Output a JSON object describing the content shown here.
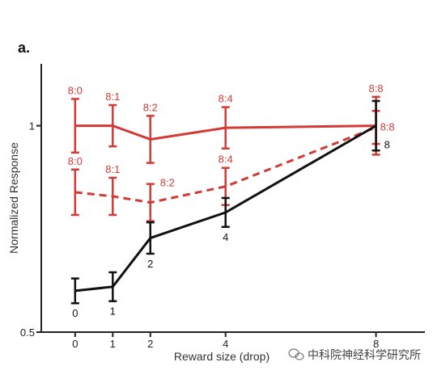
{
  "panel_label": "a.",
  "watermark": "中科院神经科学研究所",
  "chart_data": {
    "type": "line",
    "xlabel": "Reward size (drop)",
    "ylabel": "Normalized Response",
    "x": [
      0,
      1,
      2,
      4,
      8
    ],
    "x_ticks": [
      "0",
      "1",
      "2",
      "4",
      "8"
    ],
    "y_ticks": [
      "0.5",
      "1"
    ],
    "y_tick_values": [
      0.5,
      1
    ],
    "xlim": [
      -0.9,
      9.3
    ],
    "ylim": [
      0.5,
      1.15
    ],
    "grid": false,
    "legend": "none",
    "series": [
      {
        "color": "#d23a36",
        "dash": "solid",
        "values": [
          1.0,
          1.0,
          0.967,
          0.995,
          1.0
        ],
        "errors": [
          0.065,
          0.05,
          0.057,
          0.05,
          0.07
        ],
        "labels": [
          "8:0",
          "8:1",
          "8:2",
          "8:4",
          "8:8"
        ]
      },
      {
        "color": "#d23a36",
        "dash": "dashed",
        "values": [
          0.839,
          0.829,
          0.814,
          0.853,
          0.996
        ],
        "errors": [
          0.055,
          0.045,
          0.045,
          0.045,
          0.04
        ],
        "labels": [
          "8:0",
          "8:1",
          "8:2",
          "8:4",
          "8:8"
        ]
      },
      {
        "color": "#111111",
        "dash": "solid",
        "values": [
          0.6,
          0.61,
          0.728,
          0.79,
          1.0
        ],
        "errors": [
          0.03,
          0.035,
          0.038,
          0.035,
          0.06
        ],
        "labels": [
          "0",
          "1",
          "2",
          "4",
          "8"
        ]
      }
    ]
  }
}
